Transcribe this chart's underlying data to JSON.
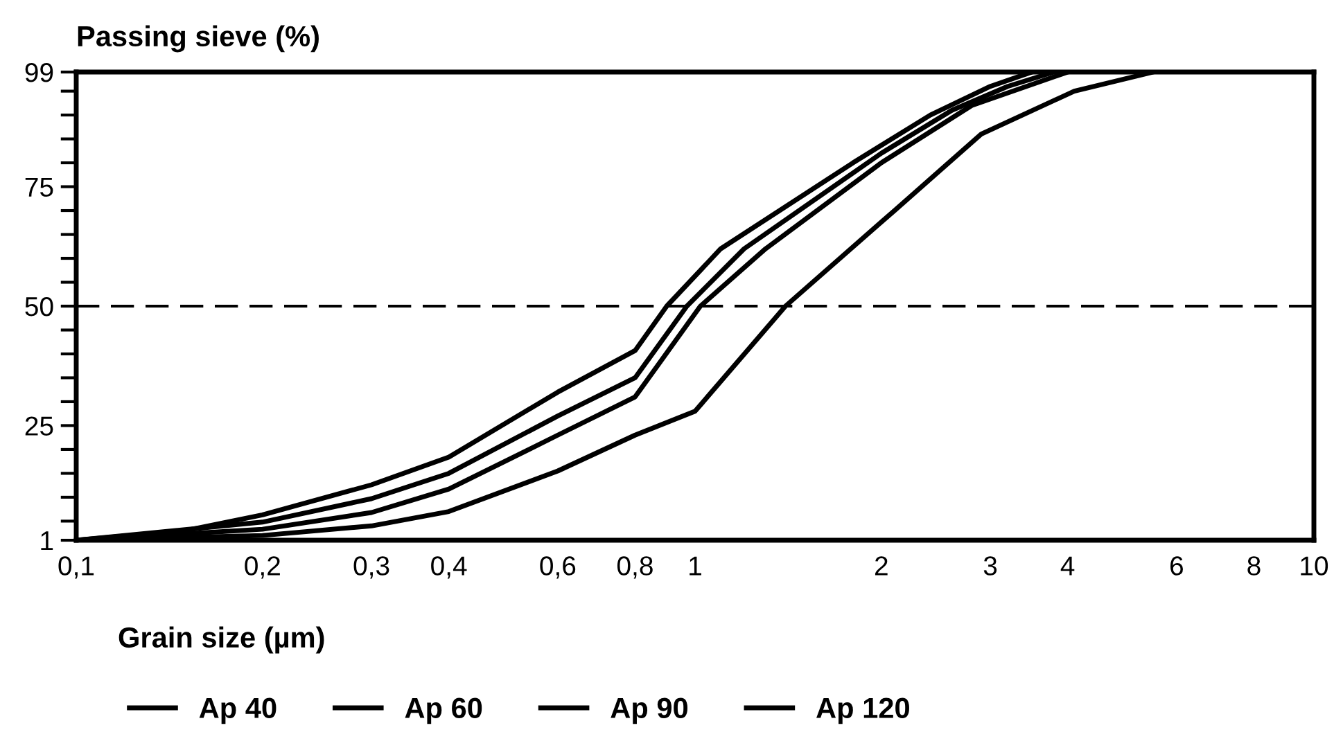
{
  "chart_data": {
    "type": "line",
    "ylabel": "Passing sieve (%)",
    "xlabel": "Grain size (µm)",
    "log": "x",
    "xlim": [
      0.1,
      10
    ],
    "xticks": [
      {
        "value": 0.1,
        "label": "0,1"
      },
      {
        "value": 0.2,
        "label": "0,2"
      },
      {
        "value": 0.3,
        "label": "0,3"
      },
      {
        "value": 0.4,
        "label": "0,4"
      },
      {
        "value": 0.6,
        "label": "0,6"
      },
      {
        "value": 0.8,
        "label": "0,8"
      },
      1,
      2,
      3,
      4,
      6,
      8,
      10
    ],
    "ylim": [
      1,
      99
    ],
    "yticks": [
      1,
      {
        "value": 5,
        "label": null
      },
      {
        "value": 10,
        "label": null
      },
      {
        "value": 15,
        "label": null
      },
      {
        "value": 20,
        "label": null
      },
      25,
      {
        "value": 30,
        "label": null
      },
      {
        "value": 35,
        "label": null
      },
      {
        "value": 40,
        "label": null
      },
      {
        "value": 45,
        "label": null
      },
      50,
      {
        "value": 55,
        "label": null
      },
      {
        "value": 60,
        "label": null
      },
      {
        "value": 65,
        "label": null
      },
      {
        "value": 70,
        "label": null
      },
      75,
      {
        "value": 80,
        "label": null
      },
      {
        "value": 85,
        "label": null
      },
      {
        "value": 90,
        "label": null
      },
      {
        "value": 95,
        "label": null
      },
      99
    ],
    "grid": false,
    "legend": "bottom left",
    "marker": "none",
    "line_style": "solid",
    "ref_lines": [
      {
        "axis": "y",
        "value": 50,
        "line_style": "dashed",
        "color": "#000000"
      }
    ],
    "series": [
      {
        "name": "Ap 40",
        "color": "#000000",
        "x": [
          0.1,
          0.2,
          0.3,
          0.4,
          0.6,
          0.8,
          1.0,
          1.4,
          2.1,
          2.9,
          4.1,
          5.5
        ],
        "values": [
          1,
          2,
          4,
          7,
          15.5,
          23,
          28,
          50,
          70,
          86,
          95,
          99
        ]
      },
      {
        "name": "Ap 60",
        "color": "#000000",
        "x": [
          0.1,
          0.2,
          0.3,
          0.4,
          0.6,
          0.8,
          1.02,
          1.3,
          2.0,
          2.8,
          4.0
        ],
        "values": [
          1,
          3.3,
          6.8,
          11.7,
          23,
          31,
          50,
          62,
          80,
          92,
          99
        ]
      },
      {
        "name": "Ap 90",
        "color": "#000000",
        "x": [
          0.1,
          0.2,
          0.3,
          0.4,
          0.6,
          0.8,
          0.97,
          1.2,
          2.0,
          2.6,
          3.2,
          3.8
        ],
        "values": [
          1,
          4.8,
          9.7,
          15,
          27,
          35,
          50,
          62,
          82,
          91,
          96,
          99
        ]
      },
      {
        "name": "Ap 120",
        "color": "#000000",
        "x": [
          0.1,
          0.15,
          0.2,
          0.3,
          0.4,
          0.6,
          0.8,
          0.9,
          1.1,
          1.8,
          2.4,
          3.0,
          3.5
        ],
        "values": [
          1,
          3,
          6.3,
          12.6,
          18.4,
          32,
          40.7,
          50,
          62,
          80,
          90,
          96,
          99
        ]
      }
    ]
  }
}
